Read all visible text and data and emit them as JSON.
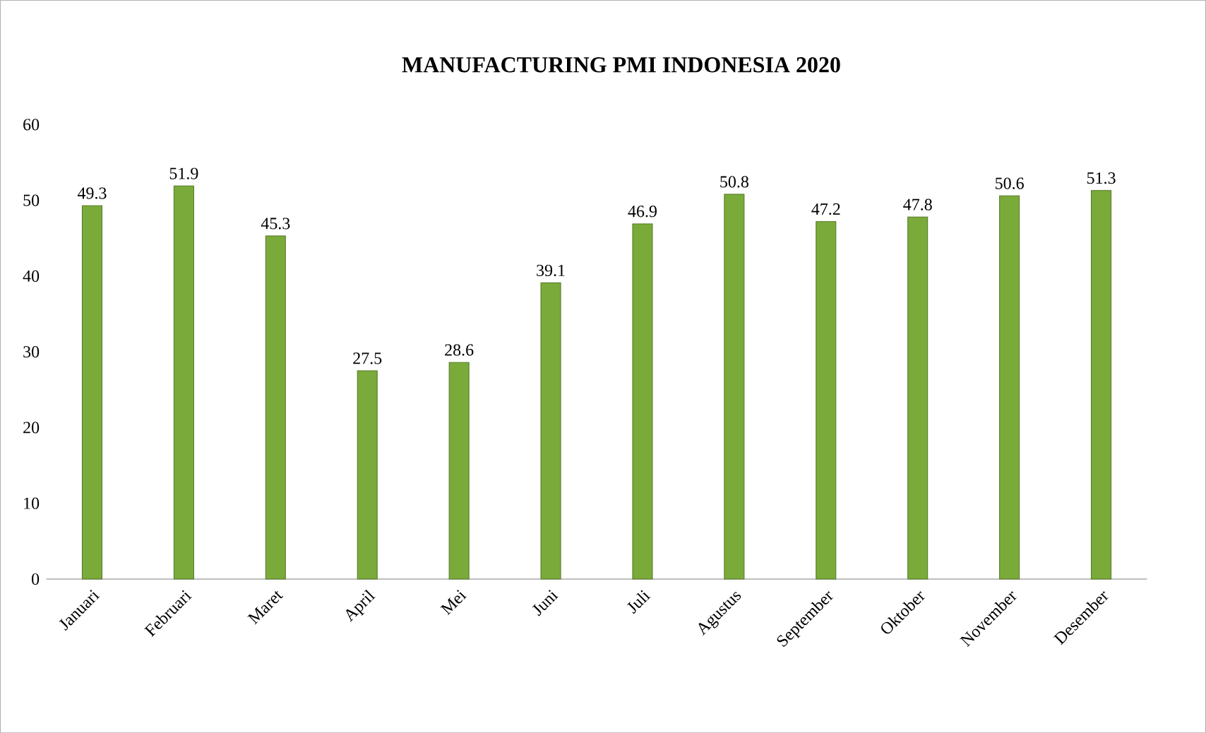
{
  "chart_data": {
    "type": "bar",
    "title": "MANUFACTURING PMI INDONESIA 2020",
    "categories": [
      "Januari",
      "Februari",
      "Maret",
      "April",
      "Mei",
      "Juni",
      "Juli",
      "Agustus",
      "September",
      "Oktober",
      "November",
      "Desember"
    ],
    "values": [
      49.3,
      51.9,
      45.3,
      27.5,
      28.6,
      39.1,
      46.9,
      50.8,
      47.2,
      47.8,
      50.6,
      51.3
    ],
    "color": "#7aab3a",
    "ylim": [
      0,
      60
    ],
    "yticks": [
      0,
      10,
      20,
      30,
      40,
      50,
      60
    ],
    "data_labels": true
  }
}
